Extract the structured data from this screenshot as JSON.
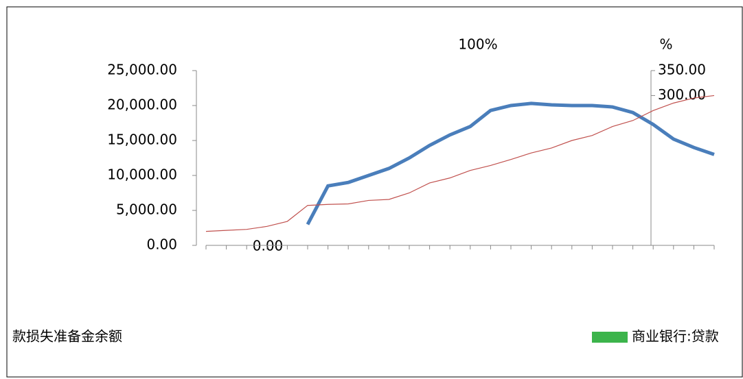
{
  "chart_data": {
    "type": "line",
    "title": "100%",
    "y2_label": "%",
    "annotation": "0.00",
    "categories": [
      null,
      null,
      null,
      null,
      null,
      null,
      null,
      null,
      null,
      null,
      null,
      null,
      null,
      null,
      null,
      null,
      null,
      null,
      null,
      null,
      null,
      null,
      null,
      null,
      null,
      null
    ],
    "series": [
      {
        "name": "款损失准备金余额",
        "color": "#4a7ebb",
        "values": [
          null,
          null,
          null,
          null,
          null,
          3000,
          8500,
          9000,
          10000,
          11000,
          12500,
          14300,
          15800,
          17000,
          19300,
          20000,
          20300,
          20100,
          20000,
          20000,
          19800,
          19000,
          17300,
          15200,
          14000,
          13000
        ]
      },
      {
        "name": "商业银行:贷款",
        "color": "#c0504d",
        "axis": "y2",
        "values": [
          28,
          30,
          32,
          38,
          48,
          80,
          82,
          83,
          90,
          92,
          105,
          125,
          135,
          150,
          160,
          172,
          185,
          195,
          210,
          220,
          238,
          250,
          270,
          285,
          295,
          300
        ]
      }
    ],
    "legend_colors": [
      "#4a7ebb",
      "#3cb44b"
    ],
    "ylim": [
      0,
      25000
    ],
    "yticks": [
      {
        "value": 0,
        "label": "0.00"
      },
      {
        "value": 5000,
        "label": "5,000.00"
      },
      {
        "value": 10000,
        "label": "10,000.00"
      },
      {
        "value": 15000,
        "label": "15,000.00"
      },
      {
        "value": 20000,
        "label": "20,000.00"
      },
      {
        "value": 25000,
        "label": "25,000.00"
      }
    ],
    "y2lim": [
      0,
      350
    ],
    "y2ticks": [
      {
        "value": 300,
        "label": "300.00"
      },
      {
        "value": 350,
        "label": "350.00"
      }
    ]
  }
}
